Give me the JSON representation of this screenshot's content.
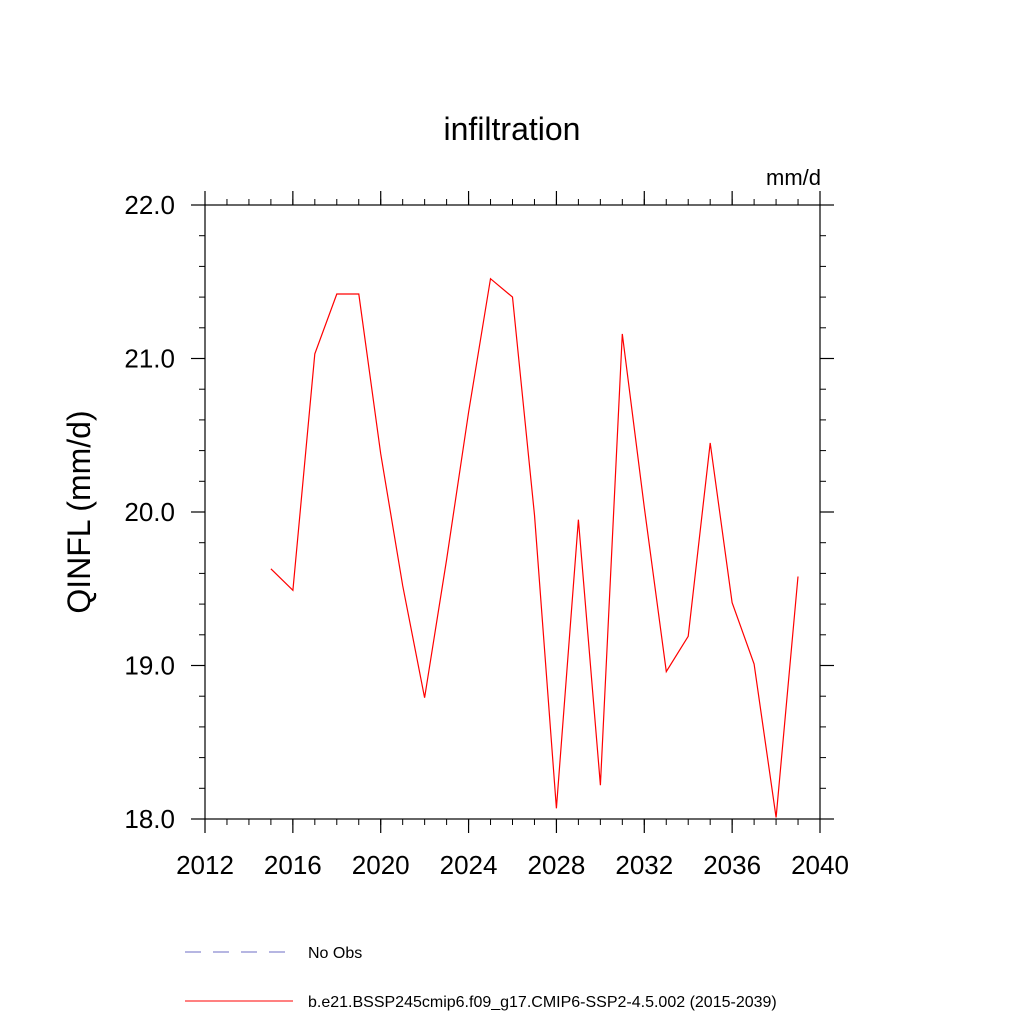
{
  "chart_data": {
    "type": "line",
    "title": "infiltration",
    "units": "mm/d",
    "ylabel": "QINFL  (mm/d)",
    "xlabel": "",
    "xlim": [
      2012,
      2040
    ],
    "ylim": [
      18.0,
      22.0
    ],
    "xticks": [
      2012,
      2016,
      2020,
      2024,
      2028,
      2032,
      2036,
      2040
    ],
    "xtick_labels": [
      "2012",
      "2016",
      "2020",
      "2024",
      "2028",
      "2032",
      "2036",
      "2040"
    ],
    "yticks": [
      18.0,
      19.0,
      20.0,
      21.0,
      22.0
    ],
    "ytick_labels": [
      "18.0",
      "19.0",
      "20.0",
      "21.0",
      "22.0"
    ],
    "x": [
      2015,
      2016,
      2017,
      2018,
      2019,
      2020,
      2021,
      2022,
      2023,
      2024,
      2025,
      2026,
      2027,
      2028,
      2029,
      2030,
      2031,
      2032,
      2033,
      2034,
      2035,
      2036,
      2037,
      2038,
      2039
    ],
    "series": [
      {
        "name": "b.e21.BSSP245cmip6.f09_g17.CMIP6-SSP2-4.5.002 (2015-2039)",
        "color": "#ff0000",
        "dash": "solid",
        "values": [
          19.63,
          19.49,
          21.03,
          21.42,
          21.42,
          20.38,
          19.52,
          18.79,
          19.69,
          20.65,
          21.52,
          21.4,
          19.98,
          18.07,
          19.95,
          18.22,
          21.16,
          20.03,
          18.96,
          19.19,
          20.45,
          19.41,
          19.01,
          18.01,
          19.58
        ]
      }
    ],
    "legend": [
      {
        "label": "No Obs",
        "color": "#6d6dc4",
        "dash": "dashed"
      },
      {
        "label": "b.e21.BSSP245cmip6.f09_g17.CMIP6-SSP2-4.5.002 (2015-2039)",
        "color": "#ff0000",
        "dash": "solid"
      }
    ],
    "legend_position": "bottom",
    "grid": false
  }
}
